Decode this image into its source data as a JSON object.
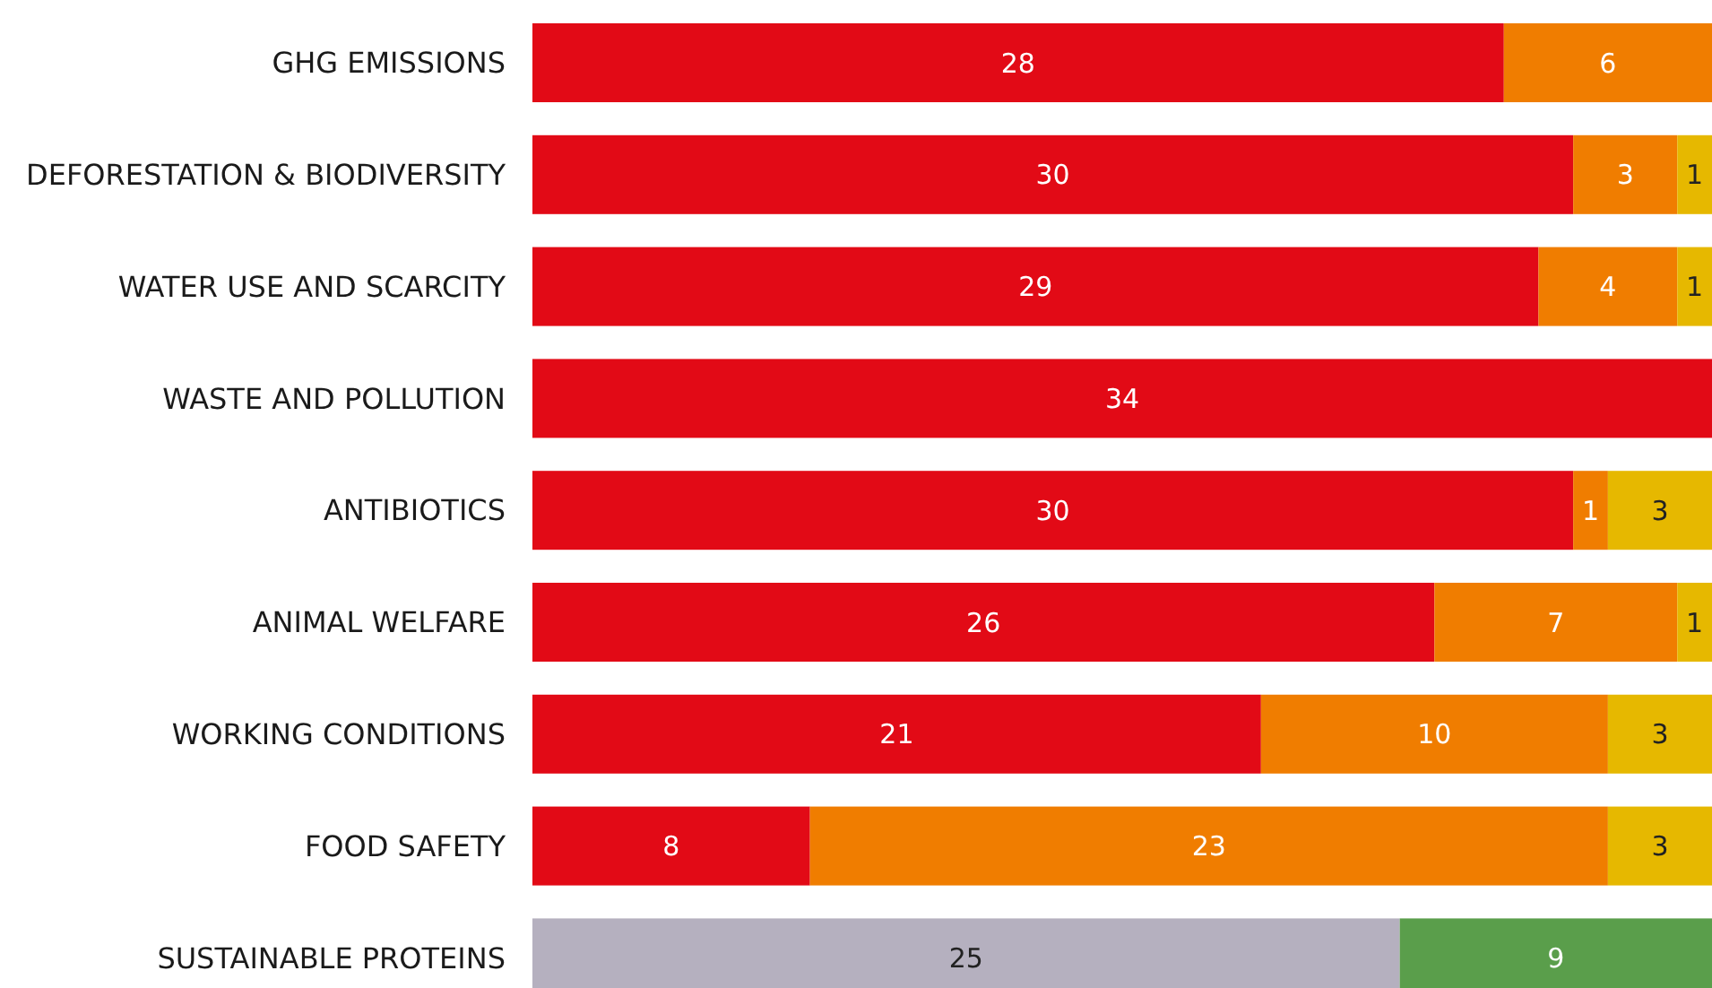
{
  "chart_data": {
    "type": "bar",
    "orientation": "horizontal",
    "stacked": true,
    "data_labels": true,
    "categories": [
      "GHG EMISSIONS",
      "DEFORESTATION & BIODIVERSITY",
      "WATER USE AND SCARCITY",
      "WASTE AND POLLUTION",
      "ANTIBIOTICS",
      "ANIMAL WELFARE",
      "WORKING CONDITIONS",
      "FOOD SAFETY",
      "SUSTAINABLE PROTEINS"
    ],
    "series": [
      {
        "color": "#e20a16",
        "values": [
          28,
          30,
          29,
          34,
          30,
          26,
          21,
          8,
          null
        ]
      },
      {
        "color": "#f07d00",
        "values": [
          6,
          3,
          4,
          null,
          1,
          7,
          10,
          23,
          null
        ]
      },
      {
        "color": "#e6b800",
        "values": [
          null,
          1,
          1,
          null,
          3,
          1,
          3,
          3,
          null
        ]
      },
      {
        "color": "#b5b0bf",
        "values": [
          null,
          null,
          null,
          null,
          null,
          null,
          null,
          null,
          25
        ]
      },
      {
        "color": "#5a9e4b",
        "values": [
          null,
          null,
          null,
          null,
          null,
          null,
          null,
          null,
          9
        ]
      }
    ]
  }
}
